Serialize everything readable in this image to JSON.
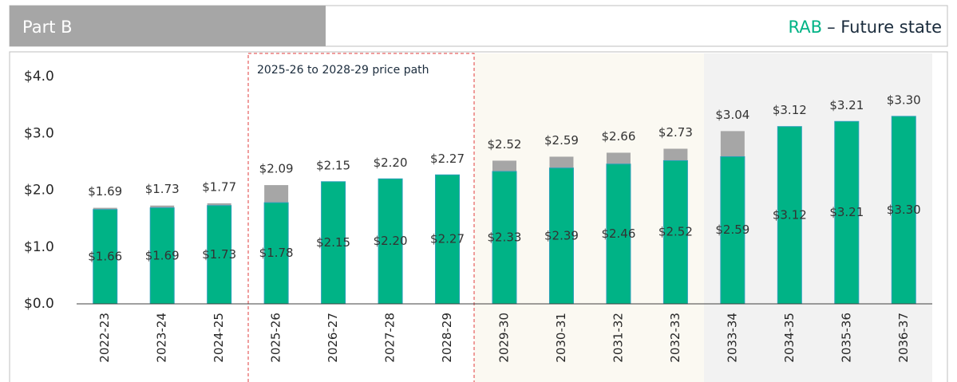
{
  "header": {
    "section": "Part B",
    "title_highlight": "RAB",
    "title_rest": "– Future state"
  },
  "chart_data": {
    "type": "stacked_bar",
    "annotation": "2025-26 to 2028-29 price path",
    "categories": [
      "2022-23",
      "2023-24",
      "2024-25",
      "2025-26",
      "2026-27",
      "2027-28",
      "2028-29",
      "2029-30",
      "2030-31",
      "2031-32",
      "2032-33",
      "2033-34",
      "2034-35",
      "2035-36",
      "2036-37"
    ],
    "series": [
      {
        "color": "#00b386",
        "values": [
          1.66,
          1.69,
          1.73,
          1.78,
          2.15,
          2.2,
          2.27,
          2.33,
          2.39,
          2.46,
          2.52,
          2.59,
          3.12,
          3.21,
          3.3
        ],
        "value_labels": [
          "$1.66",
          "$1.69",
          "$1.73",
          "$1.78",
          "$2.15",
          "$2.20",
          "$2.27",
          "$2.33",
          "$2.39",
          "$2.46",
          "$2.52",
          "$2.59",
          "$3.12",
          "$3.21",
          "$3.30"
        ]
      }
    ],
    "totals": [
      1.69,
      1.73,
      1.77,
      2.09,
      2.15,
      2.2,
      2.27,
      2.52,
      2.59,
      2.66,
      2.73,
      3.04,
      3.12,
      3.21,
      3.3
    ],
    "total_labels": [
      "$1.69",
      "$1.73",
      "$1.77",
      "$2.09",
      "$2.15",
      "$2.20",
      "$2.27",
      "$2.52",
      "$2.59",
      "$2.66",
      "$2.73",
      "$3.04",
      "$3.12",
      "$3.21",
      "$3.30"
    ],
    "total_color": "#a6a6a6",
    "ylim": [
      0,
      4
    ],
    "yticks": [
      {
        "value": 0,
        "label": "$0.0"
      },
      {
        "value": 1,
        "label": "$1.0"
      },
      {
        "value": 2,
        "label": "$2.0"
      },
      {
        "value": 3,
        "label": "$3.0"
      },
      {
        "value": 4,
        "label": "$4.0"
      }
    ]
  }
}
